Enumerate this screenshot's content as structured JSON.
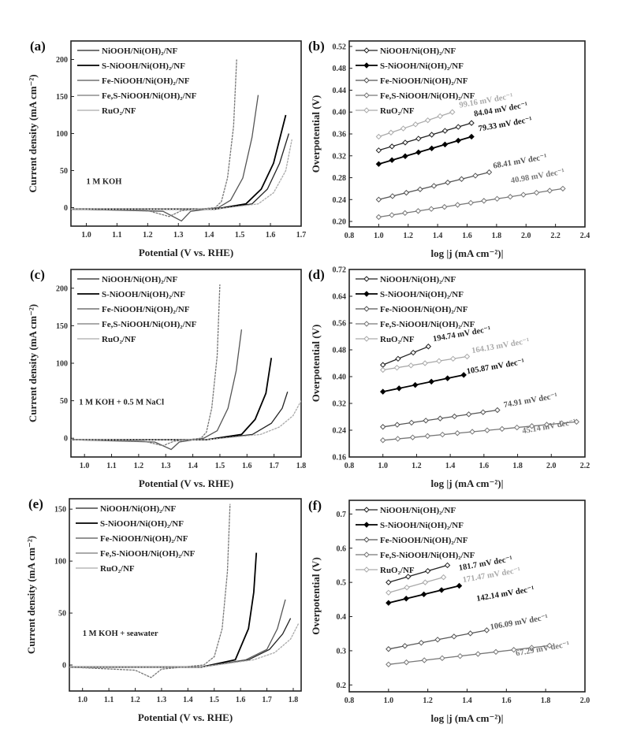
{
  "series_names": [
    "NiOOH/Ni(OH)₂/NF",
    "S-NiOOH/Ni(OH)₂/NF",
    "Fe-NiOOH/Ni(OH)₂/NF",
    "Fe,S-NiOOH/Ni(OH)₂/NF",
    "RuO₂/NF"
  ],
  "series_colors": [
    "#222222",
    "#000000",
    "#555555",
    "#777777",
    "#aaaaaa"
  ],
  "chart_data": [
    {
      "panel": "(a)",
      "type": "line",
      "title": "",
      "condition": "1 M KOH",
      "condition_at": [
        1.0,
        32
      ],
      "xlabel": "Potential (V vs. RHE)",
      "ylabel": "Current density (mA cm⁻²)",
      "xlim": [
        0.95,
        1.7
      ],
      "ylim": [
        -25,
        225
      ],
      "xticks": [
        "1.0",
        "1.1",
        "1.2",
        "1.3",
        "1.4",
        "1.5",
        "1.6",
        "1.7"
      ],
      "yticks": [
        "0",
        "50",
        "100",
        "150",
        "200"
      ],
      "legend": "top-left",
      "grid": false,
      "series": [
        {
          "name": "NiOOH/Ni(OH)₂/NF",
          "points": [
            [
              0.95,
              -2
            ],
            [
              1.42,
              -2
            ],
            [
              1.54,
              5
            ],
            [
              1.59,
              25
            ],
            [
              1.63,
              60
            ],
            [
              1.66,
              100
            ]
          ]
        },
        {
          "name": "S-NiOOH/Ni(OH)₂/NF",
          "points": [
            [
              0.95,
              -2
            ],
            [
              1.42,
              -2
            ],
            [
              1.52,
              5
            ],
            [
              1.57,
              25
            ],
            [
              1.61,
              60
            ],
            [
              1.65,
              125
            ]
          ]
        },
        {
          "name": "Fe-NiOOH/Ni(OH)₂/NF",
          "points": [
            [
              0.95,
              -2
            ],
            [
              1.25,
              -5
            ],
            [
              1.31,
              -18
            ],
            [
              1.34,
              -5
            ],
            [
              1.43,
              0
            ],
            [
              1.47,
              10
            ],
            [
              1.51,
              40
            ],
            [
              1.54,
              95
            ],
            [
              1.56,
              152
            ]
          ]
        },
        {
          "name": "Fe,S-NiOOH/Ni(OH)₂/NF",
          "points": [
            [
              0.95,
              -2
            ],
            [
              1.2,
              -4
            ],
            [
              1.27,
              -12
            ],
            [
              1.31,
              -4
            ],
            [
              1.42,
              0
            ],
            [
              1.44,
              8
            ],
            [
              1.46,
              40
            ],
            [
              1.48,
              110
            ],
            [
              1.49,
              200
            ]
          ]
        },
        {
          "name": "RuO₂/NF",
          "points": [
            [
              0.95,
              -2
            ],
            [
              1.42,
              -2
            ],
            [
              1.56,
              5
            ],
            [
              1.61,
              20
            ],
            [
              1.65,
              50
            ],
            [
              1.67,
              92
            ]
          ]
        }
      ]
    },
    {
      "panel": "(b)",
      "type": "line",
      "title": "",
      "xlabel": "log |j (mA cm⁻²)|",
      "ylabel": "Overpotential (V)",
      "xlim": [
        0.8,
        2.4
      ],
      "ylim": [
        0.19,
        0.53
      ],
      "xticks": [
        "0.8",
        "1.0",
        "1.2",
        "1.4",
        "1.6",
        "1.8",
        "2.0",
        "2.2",
        "2.4"
      ],
      "yticks": [
        "0.20",
        "0.24",
        "0.28",
        "0.32",
        "0.36",
        "0.40",
        "0.44",
        "0.48",
        "0.52"
      ],
      "legend": "top-left",
      "grid": false,
      "series": [
        {
          "name": "NiOOH/Ni(OH)₂/NF",
          "points": [
            [
              1.0,
              0.33
            ],
            [
              1.63,
              0.38
            ]
          ],
          "tafel": "84.04 mV dec⁻¹",
          "label_at": [
            1.65,
            0.392
          ]
        },
        {
          "name": "S-NiOOH/Ni(OH)₂/NF",
          "points": [
            [
              1.0,
              0.305
            ],
            [
              1.63,
              0.355
            ]
          ],
          "tafel": "79.33 mV dec⁻¹",
          "label_at": [
            1.68,
            0.365
          ]
        },
        {
          "name": "Fe-NiOOH/Ni(OH)₂/NF",
          "points": [
            [
              1.0,
              0.24
            ],
            [
              1.75,
              0.29
            ]
          ],
          "tafel": "68.41 mV dec⁻¹",
          "label_at": [
            1.78,
            0.297
          ]
        },
        {
          "name": "Fe,S-NiOOH/Ni(OH)₂/NF",
          "points": [
            [
              1.0,
              0.208
            ],
            [
              2.25,
              0.26
            ]
          ],
          "tafel": "40.98 mV dec⁻¹",
          "label_at": [
            1.9,
            0.27
          ]
        },
        {
          "name": "RuO₂/NF",
          "points": [
            [
              1.0,
              0.355
            ],
            [
              1.5,
              0.4
            ]
          ],
          "tafel": "99.16 mV dec⁻¹",
          "label_at": [
            1.55,
            0.408
          ]
        }
      ]
    },
    {
      "panel": "(c)",
      "type": "line",
      "title": "",
      "condition": "1 M KOH + 0.5 M NaCl",
      "condition_at": [
        0.98,
        45
      ],
      "xlabel": "Potential (V vs. RHE)",
      "ylabel": "Current density (mA cm⁻²)",
      "xlim": [
        0.95,
        1.8
      ],
      "ylim": [
        -25,
        225
      ],
      "xticks": [
        "1.0",
        "1.1",
        "1.2",
        "1.3",
        "1.4",
        "1.5",
        "1.6",
        "1.7",
        "1.8"
      ],
      "yticks": [
        "0",
        "50",
        "100",
        "150",
        "200"
      ],
      "legend": "top-left",
      "grid": false,
      "series": [
        {
          "name": "NiOOH/Ni(OH)₂/NF",
          "points": [
            [
              0.95,
              -2
            ],
            [
              1.45,
              -2
            ],
            [
              1.62,
              5
            ],
            [
              1.69,
              20
            ],
            [
              1.73,
              40
            ],
            [
              1.75,
              62
            ]
          ]
        },
        {
          "name": "S-NiOOH/Ni(OH)₂/NF",
          "points": [
            [
              0.95,
              -2
            ],
            [
              1.45,
              -2
            ],
            [
              1.58,
              5
            ],
            [
              1.63,
              25
            ],
            [
              1.67,
              60
            ],
            [
              1.69,
              107
            ]
          ]
        },
        {
          "name": "Fe-NiOOH/Ni(OH)₂/NF",
          "points": [
            [
              0.95,
              -2
            ],
            [
              1.26,
              -5
            ],
            [
              1.32,
              -15
            ],
            [
              1.35,
              -5
            ],
            [
              1.44,
              0
            ],
            [
              1.49,
              10
            ],
            [
              1.53,
              40
            ],
            [
              1.56,
              90
            ],
            [
              1.58,
              145
            ]
          ]
        },
        {
          "name": "Fe,S-NiOOH/Ni(OH)₂/NF",
          "points": [
            [
              0.95,
              -2
            ],
            [
              1.22,
              -4
            ],
            [
              1.29,
              -10
            ],
            [
              1.33,
              -4
            ],
            [
              1.43,
              0
            ],
            [
              1.45,
              8
            ],
            [
              1.47,
              40
            ],
            [
              1.49,
              110
            ],
            [
              1.5,
              205
            ]
          ]
        },
        {
          "name": "RuO₂/NF",
          "points": [
            [
              0.95,
              -2
            ],
            [
              1.45,
              -2
            ],
            [
              1.65,
              5
            ],
            [
              1.72,
              15
            ],
            [
              1.77,
              30
            ],
            [
              1.8,
              50
            ]
          ]
        }
      ]
    },
    {
      "panel": "(d)",
      "type": "line",
      "title": "",
      "xlabel": "log |j (mA cm⁻²)|",
      "ylabel": "Overpotential (V)",
      "xlim": [
        0.8,
        2.2
      ],
      "ylim": [
        0.16,
        0.72
      ],
      "xticks": [
        "0.8",
        "1.0",
        "1.2",
        "1.4",
        "1.6",
        "1.8",
        "2.0",
        "2.2"
      ],
      "yticks": [
        "0.16",
        "0.24",
        "0.32",
        "0.40",
        "0.48",
        "0.56",
        "0.64",
        "0.72"
      ],
      "legend": "top-left",
      "grid": false,
      "series": [
        {
          "name": "NiOOH/Ni(OH)₂/NF",
          "points": [
            [
              1.0,
              0.435
            ],
            [
              1.27,
              0.49
            ]
          ],
          "tafel": "194.74 mV dec⁻¹",
          "label_at": [
            1.3,
            0.505
          ]
        },
        {
          "name": "S-NiOOH/Ni(OH)₂/NF",
          "points": [
            [
              1.0,
              0.355
            ],
            [
              1.48,
              0.405
            ]
          ],
          "tafel": "105.87 mV dec⁻¹",
          "label_at": [
            1.5,
            0.408
          ]
        },
        {
          "name": "Fe-NiOOH/Ni(OH)₂/NF",
          "points": [
            [
              1.0,
              0.25
            ],
            [
              1.68,
              0.3
            ]
          ],
          "tafel": "74.91 mV dec⁻¹",
          "label_at": [
            1.72,
            0.308
          ]
        },
        {
          "name": "Fe,S-NiOOH/Ni(OH)₂/NF",
          "points": [
            [
              1.0,
              0.21
            ],
            [
              2.15,
              0.265
            ]
          ],
          "tafel": "45.14 mV dec⁻¹",
          "label_at": [
            1.83,
            0.23
          ]
        },
        {
          "name": "RuO₂/NF",
          "points": [
            [
              1.0,
              0.42
            ],
            [
              1.5,
              0.46
            ]
          ],
          "tafel": "164.13 mV dec⁻¹",
          "label_at": [
            1.53,
            0.47
          ]
        }
      ]
    },
    {
      "panel": "(e)",
      "type": "line",
      "title": "",
      "condition": "1 M KOH + seawater",
      "condition_at": [
        1.0,
        28
      ],
      "xlabel": "Potential (V vs. RHE)",
      "ylabel": "Current density (mA cm⁻²)",
      "xlim": [
        0.95,
        1.83
      ],
      "ylim": [
        -25,
        160
      ],
      "xticks": [
        "1.0",
        "1.1",
        "1.2",
        "1.3",
        "1.4",
        "1.5",
        "1.6",
        "1.7",
        "1.8"
      ],
      "yticks": [
        "0",
        "50",
        "100",
        "150"
      ],
      "legend": "top-left",
      "grid": false,
      "series": [
        {
          "name": "NiOOH/Ni(OH)₂/NF",
          "points": [
            [
              0.95,
              -2
            ],
            [
              1.45,
              -2
            ],
            [
              1.63,
              5
            ],
            [
              1.71,
              15
            ],
            [
              1.76,
              30
            ],
            [
              1.79,
              45
            ]
          ]
        },
        {
          "name": "S-NiOOH/Ni(OH)₂/NF",
          "points": [
            [
              0.95,
              -2
            ],
            [
              1.45,
              -2
            ],
            [
              1.58,
              5
            ],
            [
              1.63,
              35
            ],
            [
              1.65,
              70
            ],
            [
              1.66,
              108
            ]
          ]
        },
        {
          "name": "Fe-NiOOH/Ni(OH)₂/NF",
          "points": [
            [
              0.95,
              -2
            ],
            [
              1.45,
              -2
            ],
            [
              1.62,
              5
            ],
            [
              1.7,
              15
            ],
            [
              1.74,
              35
            ],
            [
              1.77,
              63
            ]
          ]
        },
        {
          "name": "Fe,S-NiOOH/Ni(OH)₂/NF",
          "points": [
            [
              0.95,
              -2
            ],
            [
              1.2,
              -5
            ],
            [
              1.26,
              -12
            ],
            [
              1.3,
              -4
            ],
            [
              1.46,
              0
            ],
            [
              1.5,
              8
            ],
            [
              1.53,
              35
            ],
            [
              1.55,
              90
            ],
            [
              1.56,
              155
            ]
          ]
        },
        {
          "name": "RuO₂/NF",
          "points": [
            [
              0.95,
              -2
            ],
            [
              1.45,
              -2
            ],
            [
              1.65,
              5
            ],
            [
              1.73,
              12
            ],
            [
              1.79,
              25
            ],
            [
              1.82,
              40
            ]
          ]
        }
      ]
    },
    {
      "panel": "(f)",
      "type": "line",
      "title": "",
      "xlabel": "log |j (mA cm⁻²)|",
      "ylabel": "Overpotential (V)",
      "xlim": [
        0.8,
        2.0
      ],
      "ylim": [
        0.18,
        0.74
      ],
      "xticks": [
        "0.8",
        "1.0",
        "1.2",
        "1.4",
        "1.6",
        "1.8",
        "2.0"
      ],
      "yticks": [
        "0.2",
        "0.3",
        "0.4",
        "0.5",
        "0.6",
        "0.7"
      ],
      "legend": "top-left",
      "grid": false,
      "series": [
        {
          "name": "NiOOH/Ni(OH)₂/NF",
          "points": [
            [
              1.0,
              0.5
            ],
            [
              1.3,
              0.55
            ]
          ],
          "tafel": "181.7 mV dec⁻¹",
          "label_at": [
            1.36,
            0.535
          ]
        },
        {
          "name": "S-NiOOH/Ni(OH)₂/NF",
          "points": [
            [
              1.0,
              0.44
            ],
            [
              1.36,
              0.49
            ]
          ],
          "tafel": "142.14 mV dec⁻¹",
          "label_at": [
            1.45,
            0.445
          ]
        },
        {
          "name": "Fe-NiOOH/Ni(OH)₂/NF",
          "points": [
            [
              1.0,
              0.305
            ],
            [
              1.5,
              0.36
            ]
          ],
          "tafel": "106.09 mV dec⁻¹",
          "label_at": [
            1.52,
            0.362
          ]
        },
        {
          "name": "Fe,S-NiOOH/Ni(OH)₂/NF",
          "points": [
            [
              1.0,
              0.26
            ],
            [
              1.82,
              0.315
            ]
          ],
          "tafel": "67.29 mV dec⁻¹",
          "label_at": [
            1.65,
            0.285
          ]
        },
        {
          "name": "RuO₂/NF",
          "points": [
            [
              1.0,
              0.47
            ],
            [
              1.28,
              0.515
            ]
          ],
          "tafel": "171.47 mV dec⁻¹",
          "label_at": [
            1.38,
            0.5
          ]
        }
      ]
    }
  ]
}
